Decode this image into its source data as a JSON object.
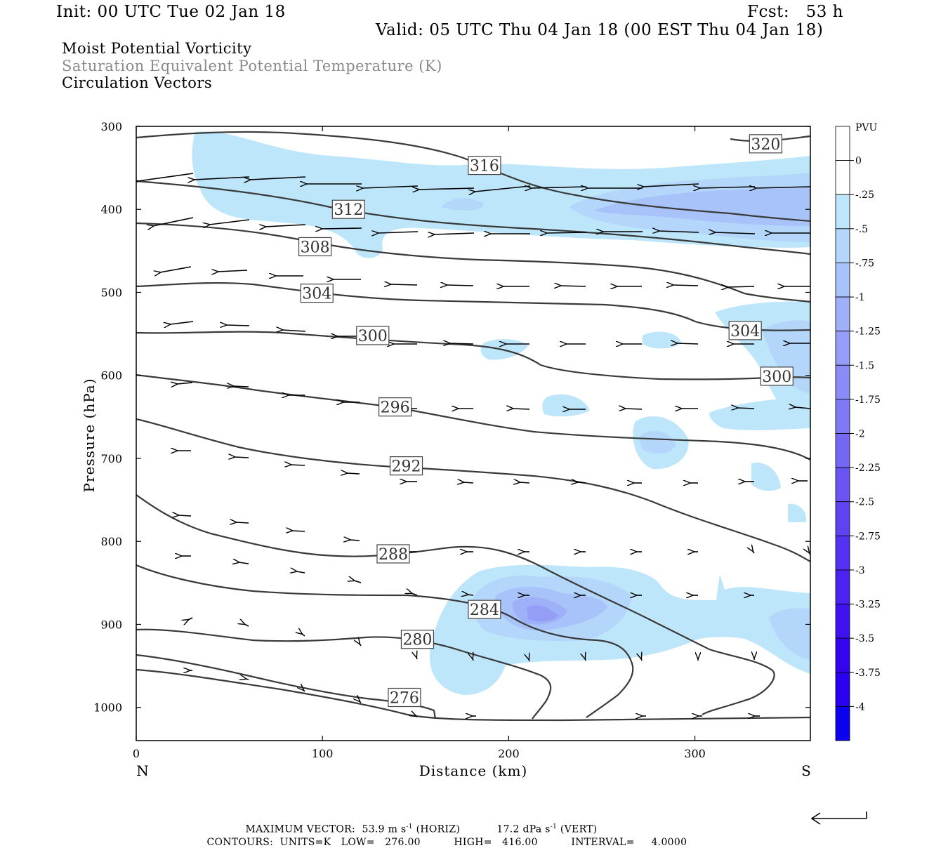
{
  "header": {
    "init": "Init: 00 UTC Tue 02 Jan 18",
    "fcst": "Fcst:   53 h",
    "valid": "Valid: 05 UTC Thu 04 Jan 18 (00 EST Thu 04 Jan 18)",
    "fields": [
      "Moist Potential Vorticity",
      "Saturation Equivalent Potential Temperature (K)",
      "Circulation Vectors"
    ]
  },
  "colors": {
    "pv_shades": [
      "#ffffff",
      "#bde6fb",
      "#b4d6fa",
      "#a8c3f9",
      "#9eb0f8",
      "#949ef7",
      "#8a8bf6",
      "#7e79f5",
      "#7467f4",
      "#6a55f3",
      "#5f43f2",
      "#5531f1",
      "#4a22f1",
      "#3f12f0",
      "#3404ef",
      "#2a00ef",
      "#0b00f0"
    ],
    "contour": "#3a3a3a"
  },
  "chart_data": {
    "type": "heatmap",
    "xlabel": "Distance (km)",
    "ylabel": "Pressure (hPa)",
    "xlim": [
      0,
      362
    ],
    "ylim": [
      1040,
      300
    ],
    "x_ticks": [
      "0",
      "100",
      "200",
      "300"
    ],
    "y_ticks": [
      "300",
      "400",
      "500",
      "600",
      "700",
      "800",
      "900",
      "1000"
    ],
    "left_end_label": "N",
    "right_end_label": "S",
    "colorbar": {
      "title": "PVU",
      "labels": [
        "0",
        "-.25",
        "-.5",
        "-.75",
        "-1",
        "-1.25",
        "-1.5",
        "-1.75",
        "-2",
        "-2.25",
        "-2.5",
        "-2.75",
        "-3",
        "-3.25",
        "-3.5",
        "-3.75",
        "-4"
      ]
    },
    "contour_labels": [
      {
        "text": "320",
        "x": 338,
        "p": 321
      },
      {
        "text": "316",
        "x": 187,
        "p": 347
      },
      {
        "text": "312",
        "x": 114,
        "p": 400
      },
      {
        "text": "308",
        "x": 96,
        "p": 445
      },
      {
        "text": "304",
        "x": 97,
        "p": 501
      },
      {
        "text": "304",
        "x": 327,
        "p": 546
      },
      {
        "text": "300",
        "x": 127,
        "p": 552
      },
      {
        "text": "300",
        "x": 344,
        "p": 601
      },
      {
        "text": "296",
        "x": 139,
        "p": 638
      },
      {
        "text": "292",
        "x": 145,
        "p": 709
      },
      {
        "text": "288",
        "x": 138,
        "p": 815
      },
      {
        "text": "284",
        "x": 187,
        "p": 882
      },
      {
        "text": "280",
        "x": 151,
        "p": 918
      },
      {
        "text": "276",
        "x": 144,
        "p": 988
      }
    ],
    "footer": {
      "max_vector_label": "MAXIMUM VECTOR:",
      "max_vector_horiz": "53.9 m s",
      "horiz_tag": "(HORIZ)",
      "max_vector_vert": "17.2 dPa s",
      "vert_tag": "(VERT)",
      "exp": "-1",
      "contours_label": "CONTOURS:",
      "units": "UNITS=K",
      "low_label": "LOW=",
      "low": "276.00",
      "high_label": "HIGH=",
      "high": "416.00",
      "interval_label": "INTERVAL=",
      "interval": "4.0000"
    }
  }
}
